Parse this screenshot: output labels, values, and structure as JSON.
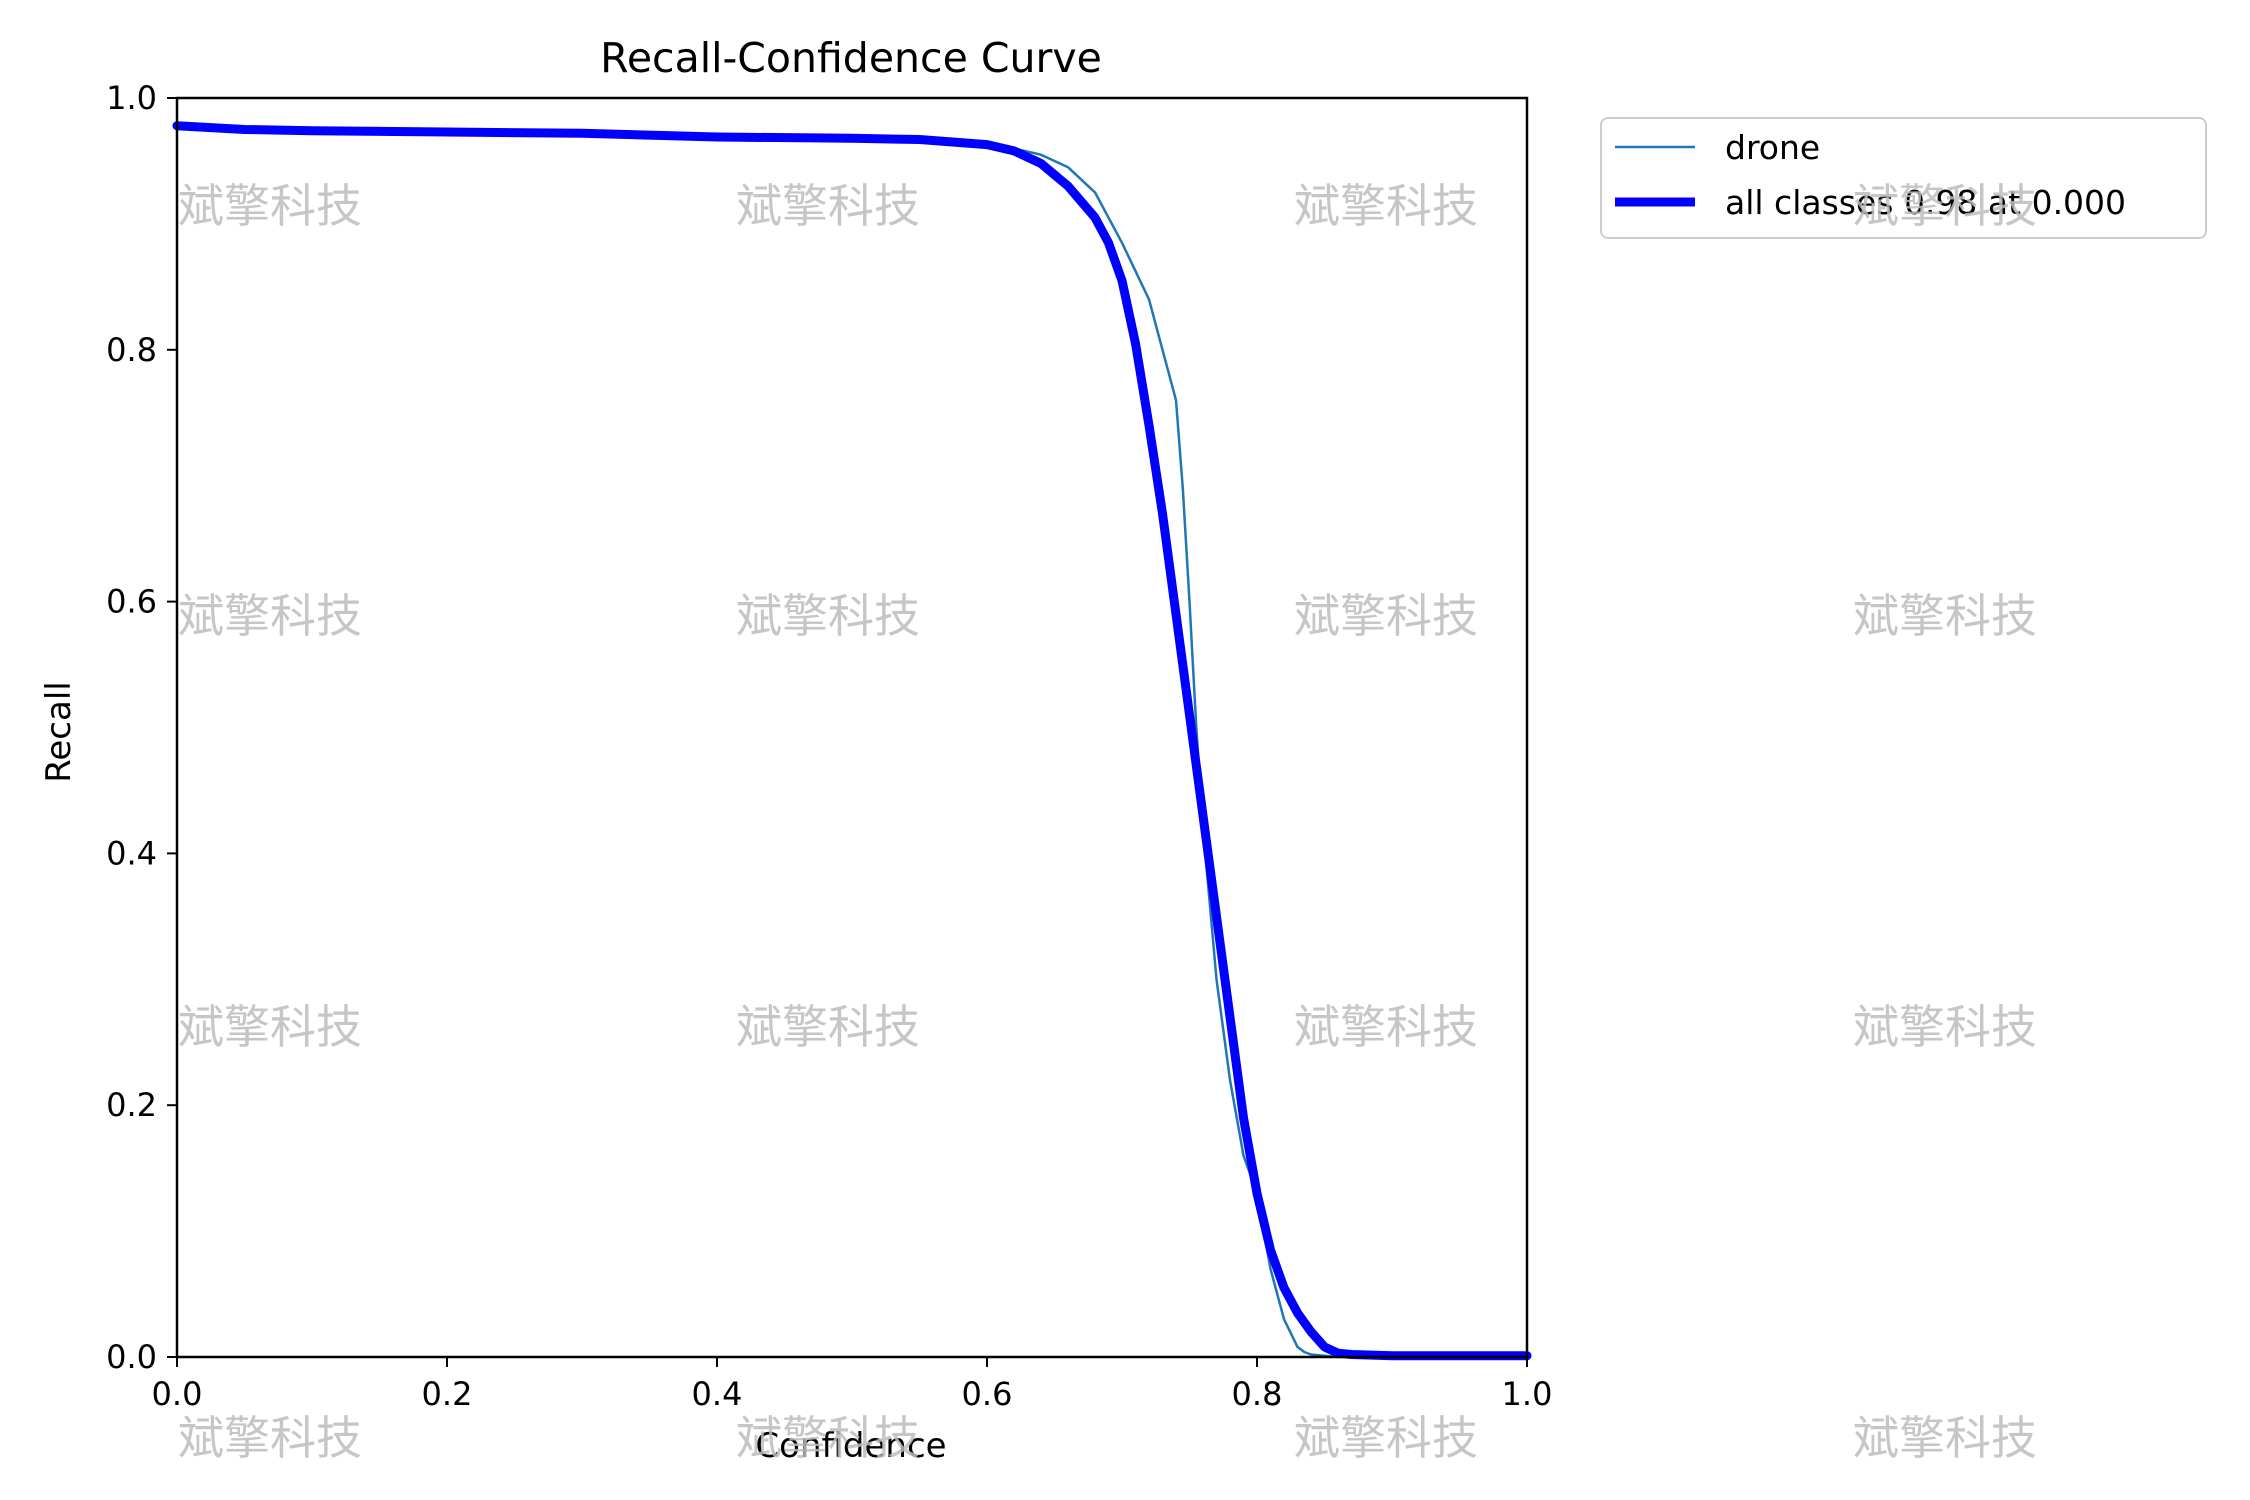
{
  "chart_data": {
    "type": "line",
    "title": "Recall-Confidence Curve",
    "xlabel": "Confidence",
    "ylabel": "Recall",
    "xlim": [
      0,
      1
    ],
    "ylim": [
      0,
      1
    ],
    "x_ticks": [
      "0.0",
      "0.2",
      "0.4",
      "0.6",
      "0.8",
      "1.0"
    ],
    "y_ticks": [
      "0.0",
      "0.2",
      "0.4",
      "0.6",
      "0.8",
      "1.0"
    ],
    "grid": false,
    "legend_position": "outside-top-right",
    "series": [
      {
        "name": "drone",
        "color": "#1f77b4",
        "style": "thin",
        "x": [
          0.0,
          0.05,
          0.1,
          0.2,
          0.3,
          0.4,
          0.5,
          0.55,
          0.6,
          0.62,
          0.64,
          0.66,
          0.68,
          0.7,
          0.72,
          0.73,
          0.74,
          0.745,
          0.75,
          0.755,
          0.76,
          0.765,
          0.77,
          0.78,
          0.79,
          0.8,
          0.81,
          0.82,
          0.83,
          0.835,
          0.84,
          0.86,
          0.9,
          1.0
        ],
        "y": [
          0.978,
          0.975,
          0.974,
          0.973,
          0.972,
          0.969,
          0.968,
          0.967,
          0.963,
          0.96,
          0.955,
          0.945,
          0.925,
          0.885,
          0.84,
          0.8,
          0.76,
          0.69,
          0.6,
          0.5,
          0.42,
          0.36,
          0.3,
          0.22,
          0.16,
          0.13,
          0.07,
          0.03,
          0.008,
          0.004,
          0.002,
          0.0,
          0.0,
          0.0
        ]
      },
      {
        "name": "all classes 0.98 at 0.000",
        "color": "#0000ff",
        "style": "thick",
        "x": [
          0.0,
          0.05,
          0.1,
          0.2,
          0.3,
          0.4,
          0.5,
          0.55,
          0.6,
          0.62,
          0.64,
          0.66,
          0.68,
          0.69,
          0.7,
          0.71,
          0.72,
          0.73,
          0.74,
          0.75,
          0.76,
          0.77,
          0.78,
          0.79,
          0.8,
          0.81,
          0.82,
          0.83,
          0.84,
          0.85,
          0.86,
          0.87,
          0.9,
          1.0
        ],
        "y": [
          0.978,
          0.975,
          0.974,
          0.973,
          0.972,
          0.969,
          0.968,
          0.967,
          0.963,
          0.958,
          0.948,
          0.93,
          0.905,
          0.885,
          0.855,
          0.805,
          0.74,
          0.67,
          0.59,
          0.51,
          0.43,
          0.35,
          0.27,
          0.19,
          0.13,
          0.085,
          0.055,
          0.035,
          0.02,
          0.008,
          0.003,
          0.002,
          0.001,
          0.001
        ]
      }
    ]
  },
  "watermark": {
    "text": "斌擎科技"
  }
}
